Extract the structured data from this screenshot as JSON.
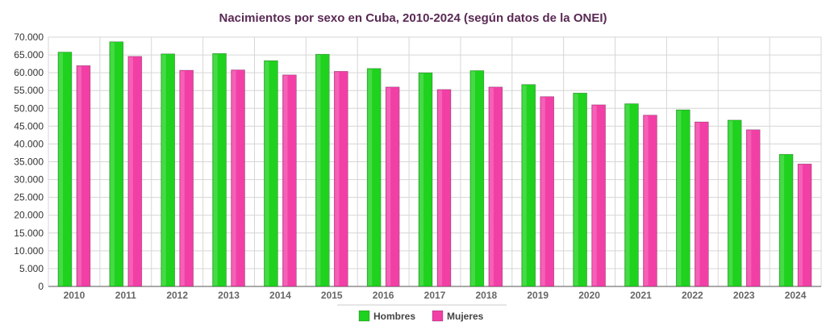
{
  "chart_data": {
    "type": "bar",
    "title": "Nacimientos por sexo en Cuba, 2010-2024 (según datos de la ONEI)",
    "xlabel": "",
    "ylabel": "",
    "categories": [
      "2010",
      "2011",
      "2012",
      "2013",
      "2014",
      "2015",
      "2016",
      "2017",
      "2018",
      "2019",
      "2020",
      "2021",
      "2022",
      "2023",
      "2024"
    ],
    "series": [
      {
        "name": "Hombres",
        "color": "#1ed21e",
        "values": [
          65800,
          68700,
          65300,
          65400,
          63400,
          65200,
          61200,
          60000,
          60600,
          56700,
          54300,
          51300,
          49600,
          46700,
          37100
        ]
      },
      {
        "name": "Mujeres",
        "color": "#f23fa6",
        "values": [
          62000,
          64600,
          60700,
          60800,
          59400,
          60400,
          56000,
          55300,
          56000,
          53300,
          51000,
          48100,
          46200,
          44000,
          34400
        ]
      }
    ],
    "ylim": [
      0,
      70000
    ],
    "yticks": [
      0,
      5000,
      10000,
      15000,
      20000,
      25000,
      30000,
      35000,
      40000,
      45000,
      50000,
      55000,
      60000,
      65000,
      70000
    ],
    "ytick_labels": [
      "0",
      "5.000",
      "10.000",
      "15.000",
      "20.000",
      "25.000",
      "30.000",
      "35.000",
      "40.000",
      "45.000",
      "50.000",
      "55.000",
      "60.000",
      "65.000",
      "70.000"
    ],
    "grid": true,
    "legend": "bottom-center"
  }
}
